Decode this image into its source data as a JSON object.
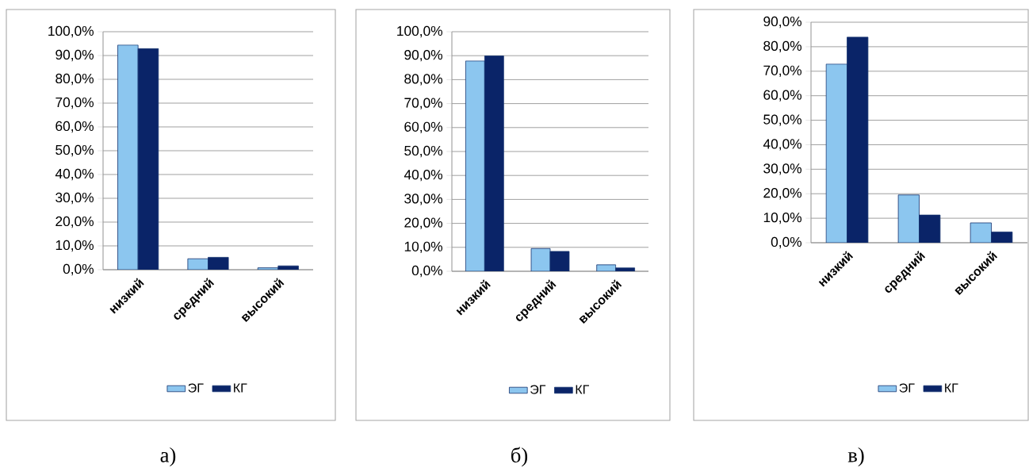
{
  "chart_data": [
    {
      "type": "bar",
      "categories": [
        "низкий",
        "средний",
        "высокий"
      ],
      "series": [
        {
          "name": "ЭГ",
          "color": "#8cc6ef",
          "values": [
            94.4,
            4.6,
            0.8
          ]
        },
        {
          "name": "КГ",
          "color": "#0a2468",
          "values": [
            92.9,
            5.2,
            1.6
          ]
        }
      ],
      "ylim": [
        0,
        100
      ],
      "yticks": [
        {
          "value": 0,
          "label": "0,0%"
        },
        {
          "value": 10,
          "label": "10,0%"
        },
        {
          "value": 20,
          "label": "20,0%"
        },
        {
          "value": 30,
          "label": "30,0%"
        },
        {
          "value": 40,
          "label": "40,0%"
        },
        {
          "value": 50,
          "label": "50,0%"
        },
        {
          "value": 60,
          "label": "60,0%"
        },
        {
          "value": 70,
          "label": "70,0%"
        },
        {
          "value": 80,
          "label": "80,0%"
        },
        {
          "value": 90,
          "label": "90,0%"
        },
        {
          "value": 100,
          "label": "100,0%"
        }
      ],
      "grid": "y",
      "legend": "bottom",
      "annotations": [
        "а)"
      ]
    },
    {
      "type": "bar",
      "categories": [
        "низкий",
        "средний",
        "высокий"
      ],
      "series": [
        {
          "name": "ЭГ",
          "color": "#8cc6ef",
          "values": [
            87.8,
            9.5,
            2.7
          ]
        },
        {
          "name": "КГ",
          "color": "#0a2468",
          "values": [
            89.9,
            8.3,
            1.4
          ]
        }
      ],
      "ylim": [
        0,
        100
      ],
      "yticks": [
        {
          "value": 0,
          "label": "0,0%"
        },
        {
          "value": 10,
          "label": "10,0%"
        },
        {
          "value": 20,
          "label": "20,0%"
        },
        {
          "value": 30,
          "label": "30,0%"
        },
        {
          "value": 40,
          "label": "40,0%"
        },
        {
          "value": 50,
          "label": "50,0%"
        },
        {
          "value": 60,
          "label": "60,0%"
        },
        {
          "value": 70,
          "label": "70,0%"
        },
        {
          "value": 80,
          "label": "80,0%"
        },
        {
          "value": 90,
          "label": "90,0%"
        },
        {
          "value": 100,
          "label": "100,0%"
        }
      ],
      "grid": "y",
      "legend": "bottom",
      "annotations": [
        "б)"
      ]
    },
    {
      "type": "bar",
      "categories": [
        "низкий",
        "средний",
        "высокий"
      ],
      "series": [
        {
          "name": "ЭГ",
          "color": "#8cc6ef",
          "values": [
            72.9,
            19.5,
            8.1
          ]
        },
        {
          "name": "КГ",
          "color": "#0a2468",
          "values": [
            83.9,
            11.3,
            4.4
          ]
        }
      ],
      "ylim": [
        0,
        90
      ],
      "yticks": [
        {
          "value": 0,
          "label": "0,0%"
        },
        {
          "value": 10,
          "label": "10,0%"
        },
        {
          "value": 20,
          "label": "20,0%"
        },
        {
          "value": 30,
          "label": "30,0%"
        },
        {
          "value": 40,
          "label": "40,0%"
        },
        {
          "value": 50,
          "label": "50,0%"
        },
        {
          "value": 60,
          "label": "60,0%"
        },
        {
          "value": 70,
          "label": "70,0%"
        },
        {
          "value": 80,
          "label": "80,0%"
        },
        {
          "value": 90,
          "label": "90,0%"
        }
      ],
      "grid": "y",
      "legend": "bottom",
      "annotations": [
        "в)"
      ]
    }
  ]
}
